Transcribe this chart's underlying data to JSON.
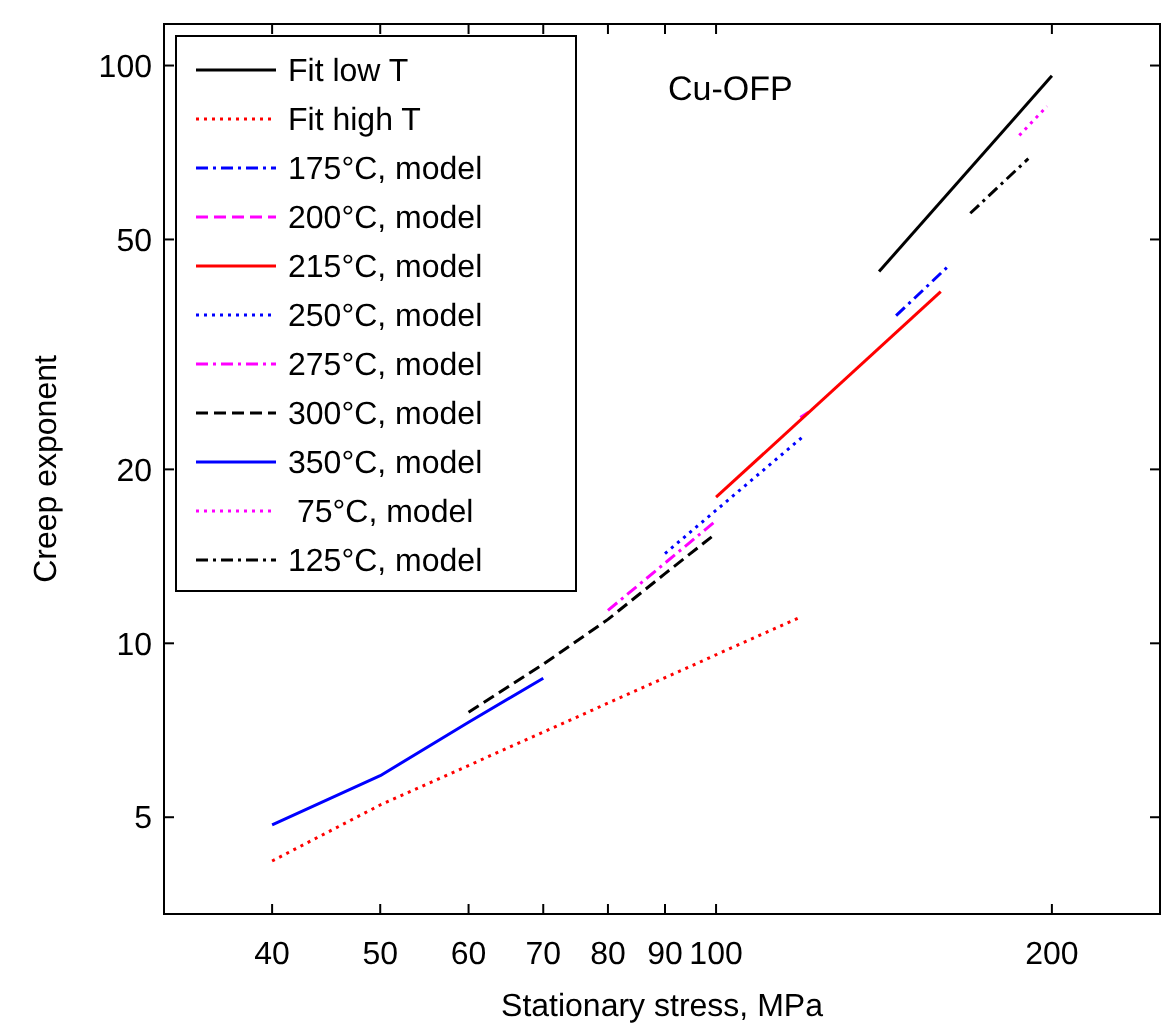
{
  "chart_data": {
    "type": "line",
    "xlabel": "Stationary stress, MPa",
    "ylabel": "Creep exponent",
    "log": "xy",
    "grid": false,
    "legend": "top left",
    "marker": "none",
    "xlim": [
      32,
      250
    ],
    "xticks": [
      40,
      50,
      60,
      70,
      80,
      90,
      100,
      200
    ],
    "ylim": [
      3.4,
      118
    ],
    "yticks": [
      5,
      10,
      20,
      50,
      100
    ],
    "annotations": [
      "Cu-OFP"
    ],
    "series": [
      {
        "name": "Fit low T",
        "color": "#000000",
        "line_style": "solid",
        "x": [
          140,
          200
        ],
        "values": [
          44,
          96
        ]
      },
      {
        "name": "Fit high T",
        "color": "#ff0000",
        "line_style": "dotted",
        "x": [
          40,
          50,
          119
        ],
        "values": [
          4.2,
          5.25,
          11.1
        ]
      },
      {
        "name": "175°C, model",
        "color": "#0000ff",
        "line_style": "dashdot",
        "x": [
          145,
          161
        ],
        "values": [
          36.9,
          44.7
        ]
      },
      {
        "name": "200°C, model",
        "color": "#ff00ff",
        "line_style": "dashed",
        "x": [
          119,
          121
        ],
        "values": [
          24.6,
          25.1
        ]
      },
      {
        "name": "215°C, model",
        "color": "#ff0000",
        "line_style": "solid",
        "x": [
          100,
          159
        ],
        "values": [
          17.9,
          40.6
        ]
      },
      {
        "name": "250°C, model",
        "color": "#0000ff",
        "line_style": "dotted",
        "x": [
          90,
          120
        ],
        "values": [
          14.3,
          22.9
        ]
      },
      {
        "name": "275°C, model",
        "color": "#ff00ff",
        "line_style": "dashdot",
        "x": [
          80,
          100
        ],
        "values": [
          11.4,
          16.3
        ]
      },
      {
        "name": "300°C, model",
        "color": "#000000",
        "line_style": "dashed",
        "x": [
          60,
          70,
          80,
          90,
          100
        ],
        "values": [
          7.6,
          9.2,
          11.0,
          13.2,
          15.5
        ]
      },
      {
        "name": "350°C, model",
        "color": "#0000ff",
        "line_style": "solid",
        "x": [
          40,
          50,
          60,
          70
        ],
        "values": [
          4.85,
          5.9,
          7.3,
          8.7
        ]
      },
      {
        "name": " 75°C, model",
        "color": "#ff00ff",
        "line_style": "dotted",
        "x": [
          187,
          198
        ],
        "values": [
          75.7,
          85
        ]
      },
      {
        "name": "125°C, model",
        "color": "#000000",
        "line_style": "dashdot",
        "x": [
          169,
          190.5
        ],
        "values": [
          55.5,
          69
        ]
      }
    ]
  }
}
